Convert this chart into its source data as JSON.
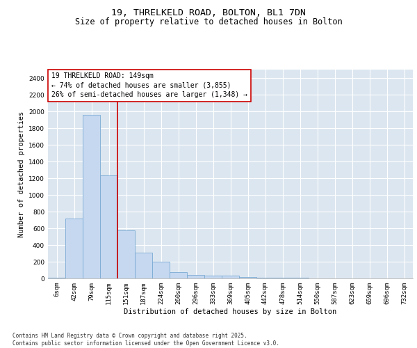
{
  "title1": "19, THRELKELD ROAD, BOLTON, BL1 7DN",
  "title2": "Size of property relative to detached houses in Bolton",
  "xlabel": "Distribution of detached houses by size in Bolton",
  "ylabel": "Number of detached properties",
  "categories": [
    "6sqm",
    "42sqm",
    "79sqm",
    "115sqm",
    "151sqm",
    "187sqm",
    "224sqm",
    "260sqm",
    "296sqm",
    "333sqm",
    "369sqm",
    "405sqm",
    "442sqm",
    "478sqm",
    "514sqm",
    "550sqm",
    "587sqm",
    "623sqm",
    "659sqm",
    "696sqm",
    "732sqm"
  ],
  "values": [
    10,
    715,
    1960,
    1235,
    575,
    305,
    200,
    75,
    40,
    30,
    30,
    15,
    5,
    5,
    5,
    2,
    1,
    1,
    0,
    0,
    0
  ],
  "bar_color": "#c5d8f0",
  "bar_edge_color": "#7aaad4",
  "property_line_color": "#cc0000",
  "annotation_text": "19 THRELKELD ROAD: 149sqm\n← 74% of detached houses are smaller (3,855)\n26% of semi-detached houses are larger (1,348) →",
  "annotation_box_color": "#cc0000",
  "ylim": [
    0,
    2500
  ],
  "yticks": [
    0,
    200,
    400,
    600,
    800,
    1000,
    1200,
    1400,
    1600,
    1800,
    2000,
    2200,
    2400
  ],
  "background_color": "#dce6f0",
  "grid_color": "#ffffff",
  "footer_text": "Contains HM Land Registry data © Crown copyright and database right 2025.\nContains public sector information licensed under the Open Government Licence v3.0.",
  "title_fontsize": 9.5,
  "subtitle_fontsize": 8.5,
  "axis_label_fontsize": 7.5,
  "tick_fontsize": 6.5,
  "annotation_fontsize": 7,
  "footer_fontsize": 5.5
}
